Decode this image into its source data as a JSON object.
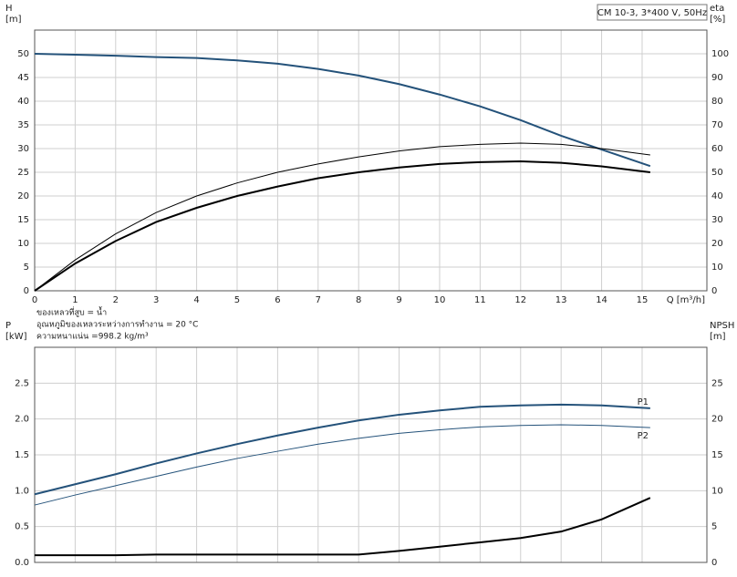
{
  "chart_data": [
    {
      "type": "line",
      "annotation": "CM 10-3, 3*400 V, 50Hz",
      "y_label": "H",
      "y_unit": "[m]",
      "y2_label": "eta",
      "y2_unit": "[%]",
      "x_label": "Q [m³/h]",
      "notes": [
        "ของเหลวที่สูบ = น้ำ",
        "อุณหภูมิของเหลวระหว่างการทำงาน = 20 °C",
        "ความหนาแน่น =998.2 kg/m³"
      ],
      "x": [
        0,
        1,
        2,
        3,
        4,
        5,
        6,
        7,
        8,
        9,
        10,
        11,
        12,
        13,
        14,
        15.2
      ],
      "xlim": [
        0,
        16.6
      ],
      "xticks": [
        0,
        1,
        2,
        3,
        4,
        5,
        6,
        7,
        8,
        9,
        10,
        11,
        12,
        13,
        14,
        15
      ],
      "ylim": [
        0,
        55
      ],
      "yticks": [
        0,
        5,
        10,
        15,
        20,
        25,
        30,
        35,
        40,
        45,
        50
      ],
      "y2lim": [
        0,
        110
      ],
      "y2ticks": [
        0,
        10,
        20,
        30,
        40,
        50,
        60,
        70,
        80,
        90,
        100
      ],
      "grid": true,
      "series": [
        {
          "color": "#24527a",
          "linewidth": 2,
          "values": [
            50,
            49.8,
            49.6,
            49.3,
            49.1,
            48.6,
            47.9,
            46.8,
            45.4,
            43.6,
            41.4,
            38.9,
            36.0,
            32.7,
            29.8,
            26.3
          ]
        },
        {
          "color": "#000000",
          "linewidth": 1,
          "axis": "y2",
          "values": [
            0,
            13,
            24,
            33,
            40,
            45.5,
            50,
            53.5,
            56.5,
            59,
            60.8,
            61.8,
            62.3,
            61.8,
            60,
            57.3
          ]
        },
        {
          "color": "#000000",
          "linewidth": 2,
          "axis": "y2",
          "values": [
            0,
            11.5,
            21,
            29,
            35,
            40,
            44,
            47.5,
            50,
            52,
            53.5,
            54.3,
            54.6,
            54,
            52.5,
            50
          ]
        }
      ]
    },
    {
      "type": "line",
      "y_label": "P",
      "y_unit": "[kW]",
      "y2_label": "NPSH",
      "y2_unit": "[m]",
      "x": [
        0,
        1,
        2,
        3,
        4,
        5,
        6,
        7,
        8,
        9,
        10,
        11,
        12,
        13,
        14,
        15.2
      ],
      "xlim": [
        0,
        16.6
      ],
      "xticks": [
        0,
        1,
        2,
        3,
        4,
        5,
        6,
        7,
        8,
        9,
        10,
        11,
        12,
        13,
        14,
        15
      ],
      "xtick_labels": false,
      "ylim": [
        0,
        3
      ],
      "yticks": [
        {
          "value": 0,
          "label": "0.0"
        },
        0.5,
        {
          "value": 1,
          "label": "1.0"
        },
        1.5,
        {
          "value": 2,
          "label": "2.0"
        },
        2.5
      ],
      "y2lim": [
        0,
        30
      ],
      "y2ticks": [
        0,
        5,
        10,
        15,
        20,
        25
      ],
      "grid": true,
      "series": [
        {
          "name": "P1",
          "color": "#24527a",
          "linewidth": 2,
          "values": [
            0.95,
            1.09,
            1.23,
            1.38,
            1.52,
            1.65,
            1.77,
            1.88,
            1.98,
            2.06,
            2.12,
            2.17,
            2.19,
            2.2,
            2.19,
            2.15
          ]
        },
        {
          "name": "P2",
          "color": "#24527a",
          "linewidth": 1,
          "values": [
            0.8,
            0.94,
            1.07,
            1.2,
            1.33,
            1.45,
            1.55,
            1.65,
            1.73,
            1.8,
            1.85,
            1.89,
            1.91,
            1.92,
            1.91,
            1.88
          ]
        },
        {
          "color": "#000000",
          "linewidth": 2,
          "axis": "y2",
          "values": [
            1,
            1,
            1,
            1.1,
            1.1,
            1.1,
            1.1,
            1.1,
            1.1,
            1.6,
            2.2,
            2.8,
            3.4,
            4.3,
            6.0,
            9.0
          ]
        }
      ]
    }
  ]
}
